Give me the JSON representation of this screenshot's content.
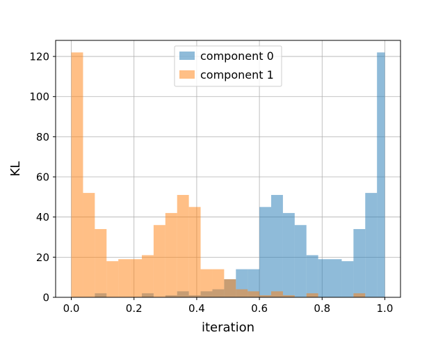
{
  "chart_data": {
    "type": "histogram",
    "title": "",
    "xlabel": "iteration",
    "ylabel": "KL",
    "xlim": [
      -0.05,
      1.05
    ],
    "ylim": [
      0,
      128
    ],
    "xticks": [
      "0.0",
      "0.2",
      "0.4",
      "0.6",
      "0.8",
      "1.0"
    ],
    "xtick_values": [
      0.0,
      0.2,
      0.4,
      0.6,
      0.8,
      1.0
    ],
    "yticks": [
      "0",
      "20",
      "40",
      "60",
      "80",
      "100",
      "120"
    ],
    "ytick_values": [
      0,
      20,
      40,
      60,
      80,
      100,
      120
    ],
    "grid": true,
    "legend_position": "top-center",
    "bin_edges": [
      0.0,
      0.0375,
      0.075,
      0.1125,
      0.15,
      0.1875,
      0.225,
      0.2625,
      0.3,
      0.3375,
      0.375,
      0.4125,
      0.45,
      0.4875,
      0.525,
      0.5625,
      0.6,
      0.6375,
      0.675,
      0.7125,
      0.75,
      0.7875,
      0.825,
      0.8625,
      0.9,
      0.9375,
      0.975,
      1.0
    ],
    "series": [
      {
        "name": "component 0",
        "color": "#1f77b4",
        "alpha": 0.5,
        "values": [
          0,
          0,
          2,
          0,
          0,
          0,
          2,
          0,
          1,
          3,
          1,
          3,
          4,
          9,
          14,
          14,
          45,
          51,
          42,
          36,
          21,
          19,
          19,
          18,
          34,
          52,
          122
        ]
      },
      {
        "name": "component 1",
        "color": "#ff7f0e",
        "alpha": 0.5,
        "values": [
          122,
          52,
          34,
          18,
          19,
          19,
          21,
          36,
          42,
          51,
          45,
          14,
          14,
          9,
          4,
          3,
          1,
          3,
          1,
          0,
          2,
          0,
          0,
          0,
          2,
          0,
          0
        ]
      }
    ]
  }
}
